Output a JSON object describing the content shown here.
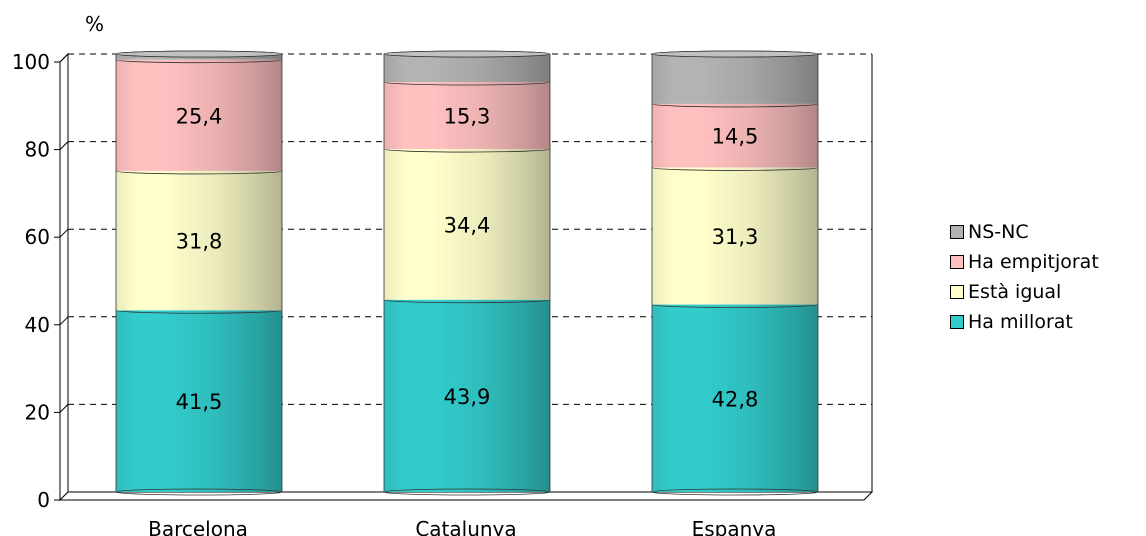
{
  "chart_data": {
    "type": "bar",
    "stacked": true,
    "ylabel": "%",
    "ylim": [
      0,
      100
    ],
    "yticks": [
      "0",
      "20",
      "40",
      "60",
      "80",
      "100"
    ],
    "grid": true,
    "legend_position": "right",
    "categories": [
      "Barcelona",
      "Catalunya",
      "Espanya"
    ],
    "series": [
      {
        "name": "Ha millorat",
        "values": [
          41.5,
          43.9,
          42.8
        ],
        "labels": [
          "41,5",
          "43,9",
          "42,8"
        ],
        "color": "#33cccc"
      },
      {
        "name": "Està igual",
        "values": [
          31.8,
          34.4,
          31.3
        ],
        "labels": [
          "31,8",
          "34,4",
          "31,3"
        ],
        "color": "#ffffcc"
      },
      {
        "name": "Ha empitjorat",
        "values": [
          25.4,
          15.3,
          14.5
        ],
        "labels": [
          "25,4",
          "15,3",
          "14,5"
        ],
        "color": "#ffc0c0"
      },
      {
        "name": "NS-NC",
        "values": [
          1.3,
          6.4,
          11.4
        ],
        "labels": [
          "",
          "",
          ""
        ],
        "color": "#b3b3b3"
      }
    ]
  }
}
